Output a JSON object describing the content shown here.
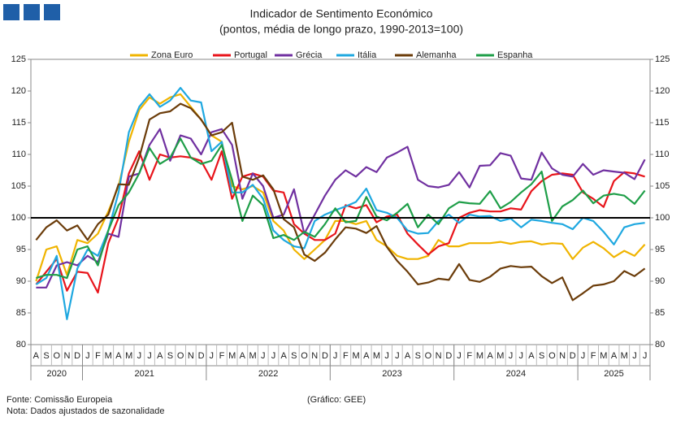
{
  "chart_data": {
    "type": "line",
    "title": "Indicador de Sentimento Económico",
    "subtitle": "(pontos, média de longo prazo, 1990-2013=100)",
    "categories": [
      "A",
      "S",
      "O",
      "N",
      "D",
      "J",
      "F",
      "M",
      "A",
      "M",
      "J",
      "J",
      "A",
      "S",
      "O",
      "N",
      "D",
      "J",
      "F",
      "M",
      "A",
      "M",
      "J",
      "J",
      "A",
      "S",
      "O",
      "N",
      "D",
      "J",
      "F",
      "M",
      "A",
      "M",
      "J",
      "J",
      "A",
      "S",
      "O",
      "N",
      "D",
      "J",
      "F",
      "M",
      "A",
      "M",
      "J",
      "J",
      "A",
      "S",
      "O",
      "N",
      "D",
      "J",
      "F",
      "M",
      "A",
      "M",
      "J",
      "J"
    ],
    "years": [
      "2020",
      "2021",
      "2022",
      "2023",
      "2024",
      "2025"
    ],
    "ylim": [
      80,
      125
    ],
    "yticks": [
      80,
      85,
      90,
      95,
      100,
      105,
      110,
      115,
      120,
      125
    ],
    "y2lim": [
      80,
      125
    ],
    "y2ticks": [
      80,
      85,
      90,
      95,
      100,
      105,
      110,
      115,
      120,
      125
    ],
    "reference_line": 100,
    "series": [
      {
        "name": "Zona Euro",
        "color": "#f0b400",
        "values": [
          90,
          95,
          95.5,
          91,
          96.5,
          96,
          97.5,
          101,
          105,
          112,
          117,
          119,
          118,
          119,
          119.5,
          117.5,
          115.5,
          113,
          112,
          105,
          104.5,
          105,
          104,
          99.5,
          98,
          95,
          93.5,
          95,
          96.5,
          99.5,
          99.5,
          99,
          99.5,
          96.5,
          95.5,
          94,
          93.5,
          93.5,
          94,
          96.5,
          95.5,
          95.5,
          96,
          96,
          96,
          96.2,
          95.9,
          96.2,
          96.3,
          95.8,
          96,
          95.9,
          93.5,
          95.3,
          96.2,
          95.2,
          93.8,
          94.8,
          94,
          95.8
        ]
      },
      {
        "name": "Portugal",
        "color": "#e8141b",
        "values": [
          89.5,
          91.5,
          93.5,
          88.5,
          91.5,
          91.3,
          88.2,
          96,
          100,
          107,
          110.5,
          106,
          110,
          109.5,
          109.7,
          109.5,
          109,
          106,
          110.5,
          103,
          106.5,
          107,
          106.5,
          104.3,
          104,
          99,
          97.5,
          96.5,
          96.5,
          97.5,
          102,
          101.5,
          102,
          99.3,
          100.2,
          100.5,
          97.5,
          95.8,
          94.2,
          95.5,
          96,
          100,
          100.8,
          101.2,
          101,
          101,
          101.5,
          101.3,
          104.2,
          105.8,
          106.8,
          107,
          106.8,
          104,
          103,
          101.7,
          105.8,
          107.2,
          107,
          106.5
        ]
      },
      {
        "name": "Grécia",
        "color": "#7030a0",
        "values": [
          89,
          89,
          92.5,
          93,
          92.5,
          94,
          93,
          97.5,
          97,
          106.5,
          107,
          111.5,
          114,
          109,
          113,
          112.5,
          110,
          113.5,
          114,
          111.5,
          103,
          107,
          105,
          100,
          100.5,
          104.5,
          97.5,
          100.5,
          103.5,
          106,
          107.5,
          106.5,
          108,
          107.2,
          109.5,
          110.3,
          111.2,
          106,
          105,
          104.8,
          105.2,
          107.2,
          104.8,
          108.2,
          108.3,
          110.2,
          109.8,
          106.2,
          106,
          110.3,
          107.8,
          106.8,
          106.5,
          108.5,
          106.8,
          107.5,
          107.3,
          107.1,
          106.1,
          109.2
        ]
      },
      {
        "name": "Itália",
        "color": "#1fa8e0",
        "values": [
          89.5,
          90.5,
          94,
          84,
          92,
          95,
          94,
          98,
          104,
          113.5,
          117.5,
          119.5,
          117.5,
          118.5,
          120.5,
          118.5,
          118.2,
          110.5,
          112,
          104,
          104,
          105.2,
          103,
          98,
          96.5,
          95.5,
          95.2,
          99.5,
          100.5,
          101.2,
          101.8,
          102.5,
          104.6,
          101.2,
          100.8,
          100,
          98,
          97.5,
          97.6,
          99.5,
          100.5,
          99.2,
          100.5,
          100.2,
          100.3,
          99.5,
          99.9,
          98.5,
          99.7,
          99.5,
          99.2,
          99,
          98.2,
          100,
          99.5,
          97.8,
          95.8,
          98.5,
          99,
          99.2
        ]
      },
      {
        "name": "Alemanha",
        "color": "#6b3c0a",
        "values": [
          96.5,
          98.5,
          99.6,
          98,
          98.8,
          96.5,
          99,
          100.5,
          105.3,
          105.2,
          109.5,
          115.5,
          116.5,
          116.8,
          118,
          117.3,
          115.5,
          113,
          113.5,
          115,
          106.5,
          106,
          106.7,
          104.5,
          99.8,
          98.5,
          94.2,
          93.2,
          94.5,
          96.6,
          98.5,
          98.3,
          97.6,
          98.7,
          95.4,
          93.2,
          91.5,
          89.5,
          89.8,
          90.4,
          90.2,
          92.7,
          90.2,
          89.9,
          90.7,
          92,
          92.4,
          92.2,
          92.3,
          90.8,
          89.7,
          90.6,
          87,
          88.1,
          89.3,
          89.5,
          90,
          91.6,
          90.8,
          92
        ]
      },
      {
        "name": "Espanha",
        "color": "#1e9e48",
        "values": [
          90.5,
          91,
          91,
          90.5,
          95,
          95.5,
          92.5,
          98,
          102,
          104,
          107,
          111,
          108.5,
          109.5,
          112.5,
          109.5,
          108.5,
          109,
          111.5,
          106,
          99.5,
          103.5,
          102,
          96.8,
          97.3,
          96.5,
          97.8,
          97,
          99,
          101.5,
          99.3,
          99.5,
          103.3,
          100.2,
          99.6,
          100.8,
          102.2,
          98.5,
          100.5,
          99,
          101.5,
          102.5,
          102.3,
          102.2,
          104.2,
          101.5,
          102.5,
          104,
          105.3,
          107.3,
          99.5,
          101.8,
          102.8,
          104.3,
          102.3,
          103.5,
          103.8,
          103.5,
          102.2,
          104.3
        ]
      }
    ],
    "source": "Fonte: Comissão Europeia",
    "note": "Nota: Dados ajustados de sazonalidade",
    "credit": "(Gráfico: GEE)"
  }
}
